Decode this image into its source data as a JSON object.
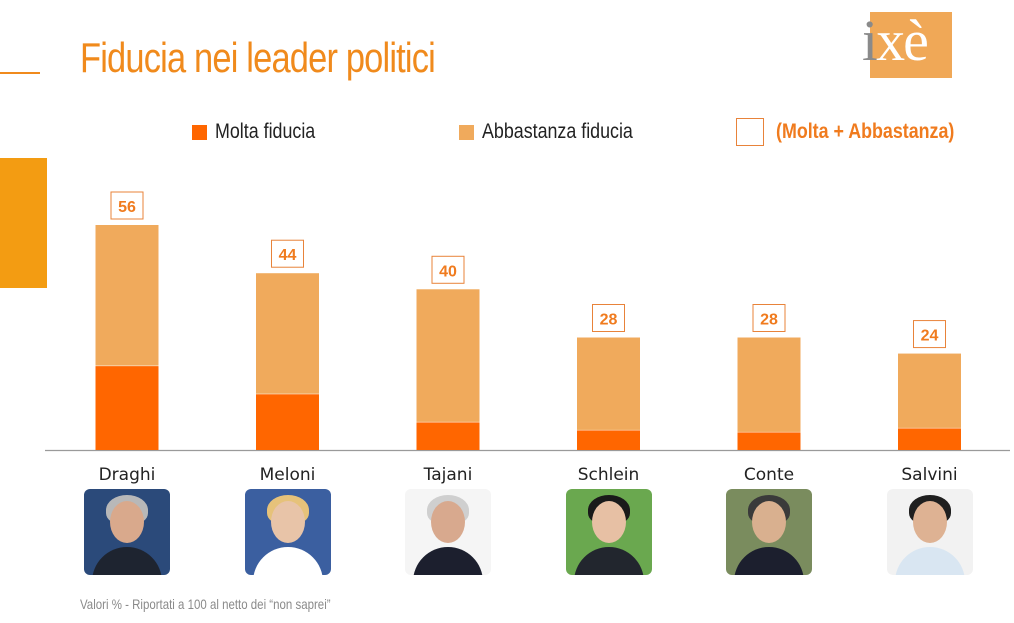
{
  "title": "Fiducia nei leader politici",
  "logo": {
    "i": "i",
    "rest": "xè"
  },
  "legend": {
    "molta": "Molta fiducia",
    "abbastanza": "Abbastanza fiducia",
    "totale": "(Molta + Abbastanza)"
  },
  "colors": {
    "molta": "#ff6600",
    "abbastanza": "#f0aa5c",
    "totale_border": "#e8833a",
    "title": "#f08a1c",
    "accent_text": "#f07b1e"
  },
  "footnote": "Valori % - Riportati a 100 al netto dei “non saprei”",
  "chart_data": {
    "type": "bar",
    "stacked": true,
    "categories": [
      "Draghi",
      "Meloni",
      "Tajani",
      "Schlein",
      "Conte",
      "Salvini"
    ],
    "series": [
      {
        "name": "Molta fiducia",
        "values": [
          21,
          14,
          7,
          5,
          4.5,
          5.5
        ]
      },
      {
        "name": "Abbastanza fiducia",
        "values": [
          35,
          30,
          33,
          23,
          23.5,
          18.5
        ]
      }
    ],
    "totals": [
      56,
      44,
      40,
      28,
      28,
      24
    ],
    "ylim": [
      0,
      56
    ],
    "grid": false,
    "legend_position": "top"
  },
  "photos": [
    {
      "icon": "draghi-portrait-icon"
    },
    {
      "icon": "meloni-portrait-icon"
    },
    {
      "icon": "tajani-portrait-icon"
    },
    {
      "icon": "schlein-portrait-icon"
    },
    {
      "icon": "conte-portrait-icon"
    },
    {
      "icon": "salvini-portrait-icon"
    }
  ]
}
